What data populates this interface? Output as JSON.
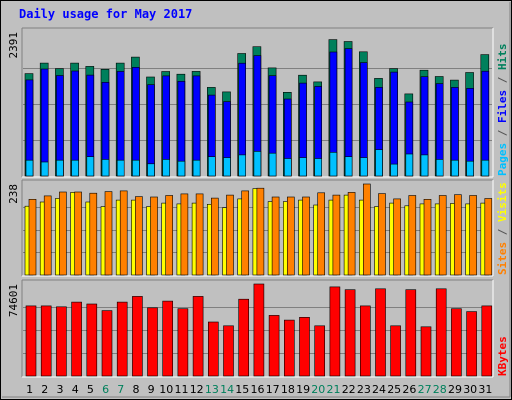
{
  "chart_data": {
    "type": "bar",
    "title": "Daily usage for May 2017",
    "days": [
      "1",
      "2",
      "3",
      "4",
      "5",
      "6",
      "7",
      "8",
      "9",
      "10",
      "11",
      "12",
      "13",
      "14",
      "15",
      "16",
      "17",
      "18",
      "19",
      "20",
      "21",
      "22",
      "23",
      "24",
      "25",
      "26",
      "27",
      "28",
      "29",
      "30",
      "31"
    ],
    "weekend_days": [
      "6",
      "7",
      "13",
      "14",
      "20",
      "21",
      "27",
      "28"
    ],
    "panels": [
      {
        "id": "hits-files-pages",
        "ymax_label": "2391",
        "ymax": 2391,
        "right_labels": [
          {
            "text": "Pages",
            "color": "#00c0ff"
          },
          {
            "text": " / ",
            "color": "#555555"
          },
          {
            "text": "Files",
            "color": "#0000ff"
          },
          {
            "text": " / ",
            "color": "#555555"
          },
          {
            "text": "Hits",
            "color": "#00805c"
          }
        ],
        "series": [
          {
            "name": "Hits",
            "color": "#00805c",
            "values": [
              1701,
              1874,
              1783,
              1874,
              1819,
              1772,
              1874,
              1975,
              1643,
              1735,
              1691,
              1736,
              1471,
              1396,
              2034,
              2147,
              1795,
              1389,
              1674,
              1563,
              2264,
              2234,
              2063,
              1620,
              1783,
              1363,
              1756,
              1652,
              1593,
              1719,
              2015
            ]
          },
          {
            "name": "Files",
            "color": "#0000ff",
            "values": [
              1596,
              1776,
              1669,
              1744,
              1675,
              1555,
              1737,
              1805,
              1516,
              1662,
              1573,
              1662,
              1344,
              1235,
              1873,
              1999,
              1665,
              1279,
              1543,
              1487,
              2059,
              2115,
              1883,
              1473,
              1725,
              1228,
              1649,
              1535,
              1471,
              1456,
              1740
            ]
          },
          {
            "name": "Pages",
            "color": "#00c0ff",
            "values": [
              262,
              232,
              262,
              262,
              321,
              276,
              262,
              262,
              203,
              276,
              246,
              262,
              321,
              306,
              350,
              408,
              379,
              290,
              306,
              290,
              394,
              321,
              306,
              438,
              198,
              365,
              350,
              276,
              262,
              246,
              262
            ]
          }
        ]
      },
      {
        "id": "sites-visits",
        "ymax_label": "238",
        "ymax": 238,
        "right_labels": [
          {
            "text": "Sites",
            "color": "#ff8000"
          },
          {
            "text": " / ",
            "color": "#555555"
          },
          {
            "text": "Visits",
            "color": "#ffff00"
          }
        ],
        "series": [
          {
            "name": "Visits",
            "color": "#ffff00",
            "values": [
              180,
              191,
              200,
              216,
              191,
              179,
              196,
              196,
              179,
              188,
              186,
              188,
              185,
              176,
              199,
              226,
              192,
              192,
              196,
              183,
              196,
              209,
              196,
              179,
              188,
              181,
              186,
              186,
              187,
              186,
              188
            ]
          },
          {
            "name": "Sites",
            "color": "#ff8000",
            "values": [
              198,
              207,
              217,
              217,
              214,
              218,
              220,
              205,
              204,
              208,
              212,
              212,
              201,
              209,
              220,
              227,
              204,
              204,
              204,
              215,
              209,
              216,
              238,
              213,
              199,
              208,
              198,
              208,
              210,
              208,
              200
            ]
          }
        ]
      },
      {
        "id": "kbytes",
        "ymax_label": "74601",
        "ymax": 74601,
        "right_labels": [
          {
            "text": "KBytes",
            "color": "#ff0000"
          }
        ],
        "series": [
          {
            "name": "KBytes",
            "color": "#ff0000",
            "values": [
              56870,
              56870,
              56098,
              59956,
              58413,
              53011,
              59956,
              64586,
              55327,
              60727,
              54555,
              64586,
              43754,
              40668,
              62271,
              74601,
              49154,
              45296,
              47611,
              40668,
              72286,
              69971,
              56870,
              70743,
              40668,
              69971,
              39896,
              70743,
              54555,
              52241,
              56870
            ]
          }
        ]
      }
    ]
  }
}
